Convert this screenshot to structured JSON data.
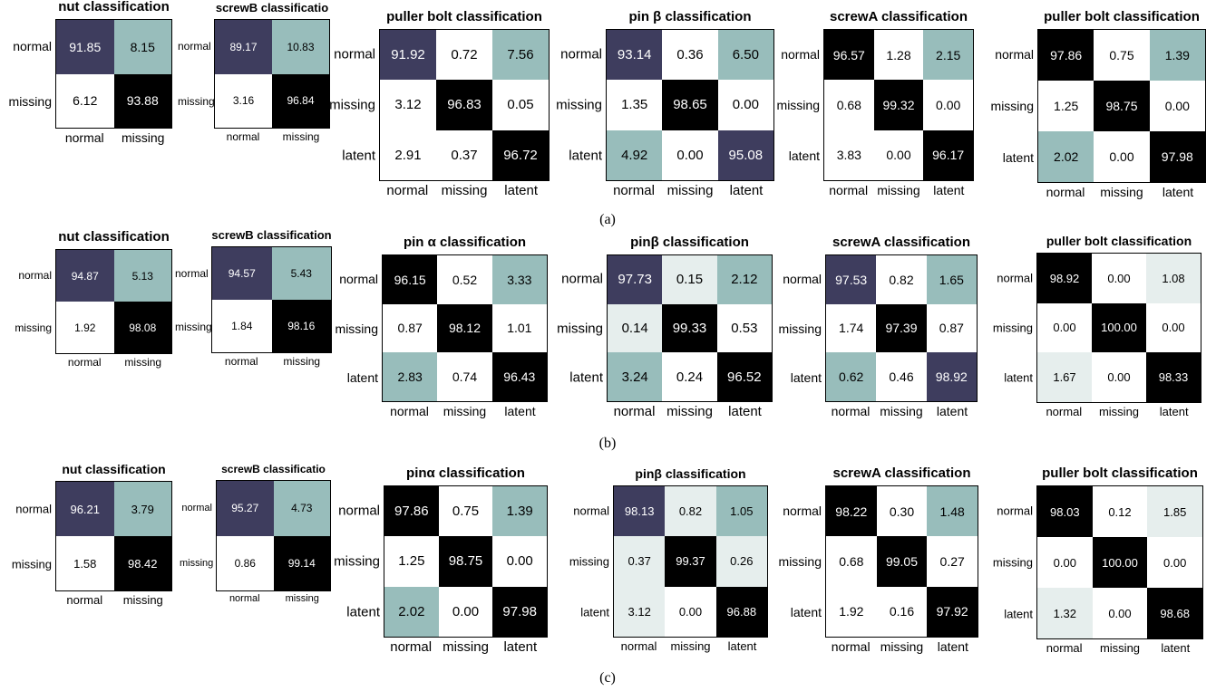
{
  "colors": {
    "black": "#000000",
    "navy": "#3e3d5e",
    "teal": "#98bdbb",
    "light": "#e6eeed",
    "white": "#ffffff"
  },
  "captions": [
    "(a)",
    "(b)",
    "(c)"
  ],
  "chart_data": [
    {
      "type": "heatmap",
      "panel": "(a)",
      "title": "nut classification",
      "rows": [
        "normal",
        "missing"
      ],
      "cols": [
        "normal",
        "missing"
      ],
      "values": [
        [
          91.85,
          8.15
        ],
        [
          6.12,
          93.88
        ]
      ],
      "fill": [
        [
          "navy",
          "teal"
        ],
        [
          "white",
          "black"
        ]
      ]
    },
    {
      "type": "heatmap",
      "panel": "(a)",
      "title": "screwB classificatio",
      "rows": [
        "normal",
        "missing"
      ],
      "cols": [
        "normal",
        "missing"
      ],
      "values": [
        [
          89.17,
          10.83
        ],
        [
          3.16,
          96.84
        ]
      ],
      "fill": [
        [
          "navy",
          "teal"
        ],
        [
          "white",
          "black"
        ]
      ]
    },
    {
      "type": "heatmap",
      "panel": "(a)",
      "title": "puller bolt classification",
      "rows": [
        "normal",
        "missing",
        "latent"
      ],
      "cols": [
        "normal",
        "missing",
        "latent"
      ],
      "values": [
        [
          91.92,
          0.72,
          7.56
        ],
        [
          3.12,
          96.83,
          0.05
        ],
        [
          2.91,
          0.37,
          96.72
        ]
      ],
      "fill": [
        [
          "navy",
          "white",
          "teal"
        ],
        [
          "white",
          "black",
          "white"
        ],
        [
          "white",
          "white",
          "black"
        ]
      ]
    },
    {
      "type": "heatmap",
      "panel": "(a)",
      "title": "pin β classification",
      "rows": [
        "normal",
        "missing",
        "latent"
      ],
      "cols": [
        "normal",
        "missing",
        "latent"
      ],
      "values": [
        [
          93.14,
          0.36,
          6.5
        ],
        [
          1.35,
          98.65,
          0.0
        ],
        [
          4.92,
          0.0,
          95.08
        ]
      ],
      "fill": [
        [
          "navy",
          "white",
          "teal"
        ],
        [
          "white",
          "black",
          "white"
        ],
        [
          "teal",
          "white",
          "navy"
        ]
      ]
    },
    {
      "type": "heatmap",
      "panel": "(a)",
      "title": "screwA classification",
      "rows": [
        "normal",
        "missing",
        "latent"
      ],
      "cols": [
        "normal",
        "missing",
        "latent"
      ],
      "values": [
        [
          96.57,
          1.28,
          2.15
        ],
        [
          0.68,
          99.32,
          0.0
        ],
        [
          3.83,
          0.0,
          96.17
        ]
      ],
      "fill": [
        [
          "black",
          "white",
          "teal"
        ],
        [
          "white",
          "black",
          "white"
        ],
        [
          "white",
          "white",
          "black"
        ]
      ]
    },
    {
      "type": "heatmap",
      "panel": "(a)",
      "title": "puller bolt classification",
      "rows": [
        "normal",
        "missing",
        "latent"
      ],
      "cols": [
        "normal",
        "missing",
        "latent"
      ],
      "values": [
        [
          97.86,
          0.75,
          1.39
        ],
        [
          1.25,
          98.75,
          0.0
        ],
        [
          2.02,
          0.0,
          97.98
        ]
      ],
      "fill": [
        [
          "black",
          "white",
          "teal"
        ],
        [
          "white",
          "black",
          "white"
        ],
        [
          "teal",
          "white",
          "black"
        ]
      ]
    },
    {
      "type": "heatmap",
      "panel": "(b)",
      "title": "nut classification",
      "rows": [
        "normal",
        "missing"
      ],
      "cols": [
        "normal",
        "missing"
      ],
      "values": [
        [
          94.87,
          5.13
        ],
        [
          1.92,
          98.08
        ]
      ],
      "fill": [
        [
          "navy",
          "teal"
        ],
        [
          "white",
          "black"
        ]
      ]
    },
    {
      "type": "heatmap",
      "panel": "(b)",
      "title": "screwB classification",
      "rows": [
        "normal",
        "missing"
      ],
      "cols": [
        "normal",
        "missing"
      ],
      "values": [
        [
          94.57,
          5.43
        ],
        [
          1.84,
          98.16
        ]
      ],
      "fill": [
        [
          "navy",
          "teal"
        ],
        [
          "white",
          "black"
        ]
      ]
    },
    {
      "type": "heatmap",
      "panel": "(b)",
      "title": "pin α classification",
      "rows": [
        "normal",
        "missing",
        "latent"
      ],
      "cols": [
        "normal",
        "missing",
        "latent"
      ],
      "values": [
        [
          96.15,
          0.52,
          3.33
        ],
        [
          0.87,
          98.12,
          1.01
        ],
        [
          2.83,
          0.74,
          96.43
        ]
      ],
      "fill": [
        [
          "black",
          "white",
          "teal"
        ],
        [
          "white",
          "black",
          "white"
        ],
        [
          "teal",
          "white",
          "black"
        ]
      ]
    },
    {
      "type": "heatmap",
      "panel": "(b)",
      "title": "pinβ classification",
      "rows": [
        "normal",
        "missing",
        "latent"
      ],
      "cols": [
        "normal",
        "missing",
        "latent"
      ],
      "values": [
        [
          97.73,
          0.15,
          2.12
        ],
        [
          0.14,
          99.33,
          0.53
        ],
        [
          3.24,
          0.24,
          96.52
        ]
      ],
      "fill": [
        [
          "navy",
          "light",
          "teal"
        ],
        [
          "light",
          "black",
          "white"
        ],
        [
          "teal",
          "white",
          "black"
        ]
      ]
    },
    {
      "type": "heatmap",
      "panel": "(b)",
      "title": "screwA classification",
      "rows": [
        "normal",
        "missing",
        "latent"
      ],
      "cols": [
        "normal",
        "missing",
        "latent"
      ],
      "values": [
        [
          97.53,
          0.82,
          1.65
        ],
        [
          1.74,
          97.39,
          0.87
        ],
        [
          0.62,
          0.46,
          98.92
        ]
      ],
      "fill": [
        [
          "navy",
          "white",
          "teal"
        ],
        [
          "white",
          "black",
          "white"
        ],
        [
          "teal",
          "white",
          "navy"
        ]
      ]
    },
    {
      "type": "heatmap",
      "panel": "(b)",
      "title": "puller bolt classification",
      "rows": [
        "normal",
        "missing",
        "latent"
      ],
      "cols": [
        "normal",
        "missing",
        "latent"
      ],
      "values": [
        [
          98.92,
          0.0,
          1.08
        ],
        [
          0.0,
          100.0,
          0.0
        ],
        [
          1.67,
          0.0,
          98.33
        ]
      ],
      "fill": [
        [
          "black",
          "white",
          "light"
        ],
        [
          "white",
          "black",
          "white"
        ],
        [
          "light",
          "white",
          "black"
        ]
      ]
    },
    {
      "type": "heatmap",
      "panel": "(c)",
      "title": "nut classification",
      "rows": [
        "normal",
        "missing"
      ],
      "cols": [
        "normal",
        "missing"
      ],
      "values": [
        [
          96.21,
          3.79
        ],
        [
          1.58,
          98.42
        ]
      ],
      "fill": [
        [
          "navy",
          "teal"
        ],
        [
          "white",
          "black"
        ]
      ]
    },
    {
      "type": "heatmap",
      "panel": "(c)",
      "title": "screwB classificatio",
      "rows": [
        "normal",
        "missing"
      ],
      "cols": [
        "normal",
        "missing"
      ],
      "values": [
        [
          95.27,
          4.73
        ],
        [
          0.86,
          99.14
        ]
      ],
      "fill": [
        [
          "navy",
          "teal"
        ],
        [
          "white",
          "black"
        ]
      ]
    },
    {
      "type": "heatmap",
      "panel": "(c)",
      "title": "pinα classification",
      "rows": [
        "normal",
        "missing",
        "latent"
      ],
      "cols": [
        "normal",
        "missing",
        "latent"
      ],
      "values": [
        [
          97.86,
          0.75,
          1.39
        ],
        [
          1.25,
          98.75,
          0.0
        ],
        [
          2.02,
          0.0,
          97.98
        ]
      ],
      "fill": [
        [
          "black",
          "white",
          "teal"
        ],
        [
          "white",
          "black",
          "white"
        ],
        [
          "teal",
          "white",
          "black"
        ]
      ]
    },
    {
      "type": "heatmap",
      "panel": "(c)",
      "title": "pinβ classification",
      "rows": [
        "normal",
        "missing",
        "latent"
      ],
      "cols": [
        "normal",
        "missing",
        "latent"
      ],
      "values": [
        [
          98.13,
          0.82,
          1.05
        ],
        [
          0.37,
          99.37,
          0.26
        ],
        [
          3.12,
          0.0,
          96.88
        ]
      ],
      "fill": [
        [
          "navy",
          "light",
          "teal"
        ],
        [
          "light",
          "black",
          "light"
        ],
        [
          "light",
          "white",
          "black"
        ]
      ]
    },
    {
      "type": "heatmap",
      "panel": "(c)",
      "title": "screwA classification",
      "rows": [
        "normal",
        "missing",
        "latent"
      ],
      "cols": [
        "normal",
        "missing",
        "latent"
      ],
      "values": [
        [
          98.22,
          0.3,
          1.48
        ],
        [
          0.68,
          99.05,
          0.27
        ],
        [
          1.92,
          0.16,
          97.92
        ]
      ],
      "fill": [
        [
          "black",
          "white",
          "teal"
        ],
        [
          "white",
          "black",
          "white"
        ],
        [
          "white",
          "white",
          "black"
        ]
      ]
    },
    {
      "type": "heatmap",
      "panel": "(c)",
      "title": "puller bolt classification",
      "rows": [
        "normal",
        "missing",
        "latent"
      ],
      "cols": [
        "normal",
        "missing",
        "latent"
      ],
      "values": [
        [
          98.03,
          0.12,
          1.85
        ],
        [
          0.0,
          100.0,
          0.0
        ],
        [
          1.32,
          0.0,
          98.68
        ]
      ],
      "fill": [
        [
          "black",
          "white",
          "light"
        ],
        [
          "white",
          "black",
          "white"
        ],
        [
          "light",
          "white",
          "black"
        ]
      ]
    }
  ]
}
